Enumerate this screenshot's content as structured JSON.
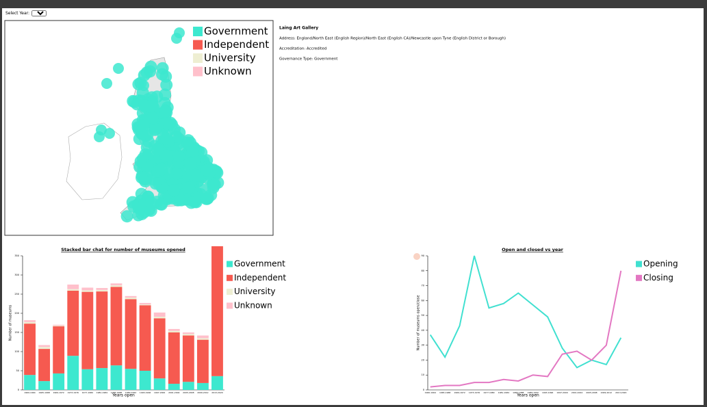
{
  "controls": {
    "select_year_label": "Select Year:",
    "select_year_value": "All"
  },
  "map": {
    "legend": [
      {
        "name": "Government",
        "color": "#3de8cf"
      },
      {
        "name": "Independent",
        "color": "#f65a50"
      },
      {
        "name": "University",
        "color": "#eeeed2"
      },
      {
        "name": "Unknown",
        "color": "#ffc0cb"
      }
    ]
  },
  "info": {
    "name": "Laing Art Gallery",
    "address": "Address: England/North East (English Region)/North East (English CA)/Newcastle upon Tyne (English District or Borough)",
    "accreditation": "Accreditation: Accredited",
    "governance": "Governance Type: Government"
  },
  "chart_data": [
    {
      "type": "bar",
      "stacked": true,
      "title": "Stacked bar chat for number of museums opened",
      "x_label": "Years open",
      "y_label": "Number of museums",
      "categories": [
        "1960-1964",
        "1965-1968",
        "1969-1972",
        "1973-1976",
        "1977-1980",
        "1981-1984",
        "1985-1988",
        "1989-1992",
        "1993-1996",
        "1997-2000",
        "2001-2004",
        "2005-2008",
        "2009-2012",
        "2013-2020"
      ],
      "series": [
        {
          "name": "Government",
          "color": "#3de8cf",
          "values": [
            39,
            23,
            43,
            89,
            54,
            57,
            64,
            55,
            50,
            30,
            16,
            21,
            18,
            36
          ]
        },
        {
          "name": "Independent",
          "color": "#f65a50",
          "values": [
            134,
            84,
            123,
            170,
            202,
            200,
            205,
            182,
            171,
            157,
            134,
            121,
            113,
            339
          ]
        },
        {
          "name": "University",
          "color": "#eeeed2",
          "values": [
            4,
            5,
            2,
            4,
            4,
            4,
            4,
            4,
            2,
            4,
            4,
            4,
            4,
            0
          ]
        },
        {
          "name": "Unknown",
          "color": "#ffc0cb",
          "values": [
            5,
            5,
            2,
            12,
            7,
            5,
            5,
            4,
            4,
            11,
            5,
            4,
            7,
            0
          ]
        }
      ],
      "ylim": [
        0,
        350
      ],
      "yticks": [
        0,
        50,
        100,
        150,
        200,
        250,
        300,
        350
      ],
      "legend": "right"
    },
    {
      "type": "line",
      "title": "Open and closed vs year",
      "x_label": "Years open",
      "y_label": "Number of museums open/close",
      "categories": [
        "1960-1964",
        "1965-1968",
        "1969-1972",
        "1973-1976",
        "1977-1980",
        "1981-1984",
        "1985-1988",
        "1989-1992",
        "1993-1996",
        "1997-2000",
        "2001-2004",
        "2005-2008",
        "2009-2012",
        "2013-2020"
      ],
      "series": [
        {
          "name": "Opening",
          "color": "#40e0d0",
          "values": [
            37,
            22,
            43,
            90,
            55,
            58,
            65,
            57,
            49,
            28,
            15,
            20,
            17,
            35
          ]
        },
        {
          "name": "Closing",
          "color": "#e377c2",
          "values": [
            2,
            3,
            3,
            5,
            5,
            7,
            6,
            10,
            9,
            24,
            26,
            20,
            30,
            80
          ]
        }
      ],
      "ylim": [
        0,
        90
      ],
      "yticks": [
        0,
        10,
        20,
        30,
        40,
        50,
        60,
        70,
        80,
        90
      ],
      "legend": "right"
    }
  ]
}
